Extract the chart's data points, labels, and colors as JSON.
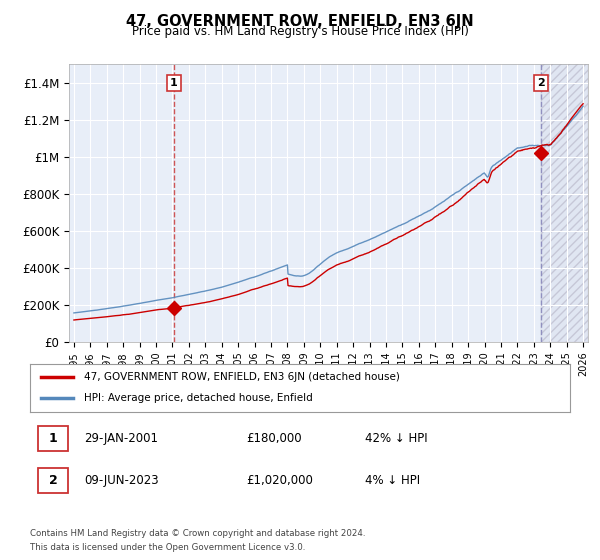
{
  "title": "47, GOVERNMENT ROW, ENFIELD, EN3 6JN",
  "subtitle": "Price paid vs. HM Land Registry's House Price Index (HPI)",
  "ylim": [
    0,
    1500000
  ],
  "yticks": [
    0,
    200000,
    400000,
    600000,
    800000,
    1000000,
    1200000,
    1400000
  ],
  "ytick_labels": [
    "£0",
    "£200K",
    "£400K",
    "£600K",
    "£800K",
    "£1M",
    "£1.2M",
    "£1.4M"
  ],
  "x_start_year": 1995,
  "x_end_year": 2026,
  "sale1_year": 2001.08,
  "sale1_price": 180000,
  "sale1_label": "1",
  "sale2_year": 2023.44,
  "sale2_price": 1020000,
  "sale2_label": "2",
  "legend_line1": "47, GOVERNMENT ROW, ENFIELD, EN3 6JN (detached house)",
  "legend_line2": "HPI: Average price, detached house, Enfield",
  "footer1": "Contains HM Land Registry data © Crown copyright and database right 2024.",
  "footer2": "This data is licensed under the Open Government Licence v3.0.",
  "line_color_red": "#cc0000",
  "line_color_blue": "#5588bb",
  "vline_color1": "#cc4444",
  "vline_color2": "#8888bb",
  "plot_bg_color": "#e8eef8",
  "background_color": "#ffffff",
  "grid_color": "#ffffff"
}
